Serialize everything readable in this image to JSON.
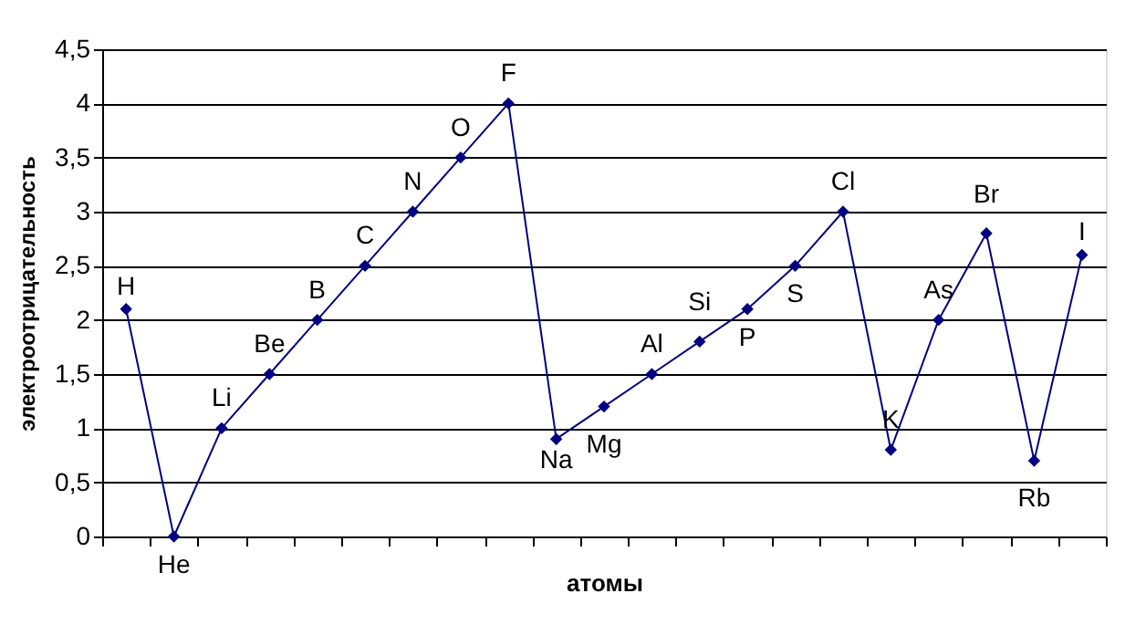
{
  "chart_data": {
    "type": "line",
    "xlabel": "атомы",
    "ylabel": "электроотрицательность",
    "categories": [
      "H",
      "He",
      "Li",
      "Be",
      "B",
      "C",
      "N",
      "O",
      "F",
      "Na",
      "Mg",
      "Al",
      "Si",
      "P",
      "S",
      "Cl",
      "K",
      "As",
      "Br",
      "Rb",
      "I"
    ],
    "values": [
      2.1,
      0,
      1.0,
      1.5,
      2.0,
      2.5,
      3.0,
      3.5,
      4.0,
      0.9,
      1.2,
      1.5,
      1.8,
      2.1,
      2.5,
      3.0,
      0.8,
      2.0,
      2.8,
      0.7,
      2.6
    ],
    "color": "#000080",
    "marker": "diamond",
    "line_style": "solid",
    "ylim": [
      0,
      4.5
    ],
    "yticks": [
      0,
      {
        "value": 0.5,
        "label": "0,5"
      },
      1,
      {
        "value": 1.5,
        "label": "1,5"
      },
      2,
      {
        "value": 2.5,
        "label": "2,5"
      },
      3,
      {
        "value": 3.5,
        "label": "3,5"
      },
      4,
      {
        "value": 4.5,
        "label": "4,5"
      }
    ],
    "grid": "y",
    "legend": false,
    "tick_labels": "y"
  }
}
